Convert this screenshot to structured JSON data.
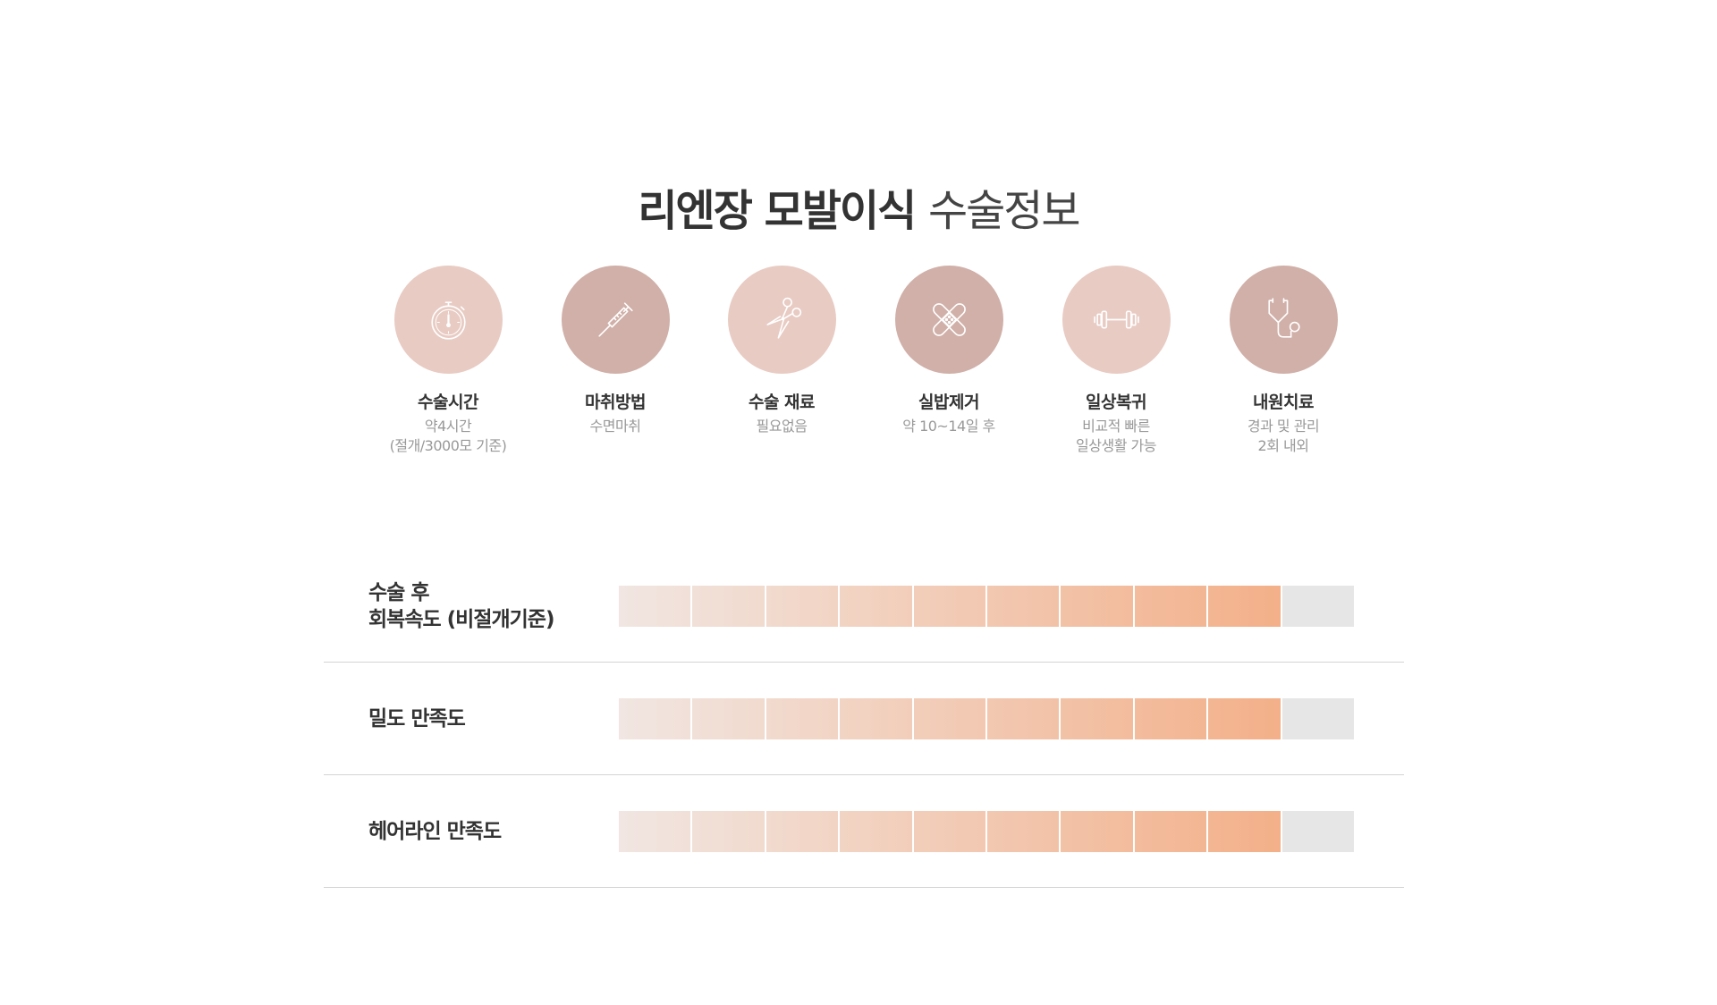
{
  "page": {
    "title_strong": "리엔장 모발이식",
    "title_light": "수술정보"
  },
  "info_items": [
    {
      "label": "수술시간",
      "desc": [
        "약4시간",
        "(절개/3000모 기준)"
      ],
      "icon": "stopwatch-icon",
      "tone": "light"
    },
    {
      "label": "마취방법",
      "desc": [
        "수면마취"
      ],
      "icon": "syringe-icon",
      "tone": "dark"
    },
    {
      "label": "수술 재료",
      "desc": [
        "필요없음"
      ],
      "icon": "scissors-icon",
      "tone": "light"
    },
    {
      "label": "실밥제거",
      "desc": [
        "약 10~14일 후"
      ],
      "icon": "bandage-icon",
      "tone": "dark"
    },
    {
      "label": "일상복귀",
      "desc": [
        "비교적 빠른",
        "일상생활 가능"
      ],
      "icon": "dumbbell-icon",
      "tone": "light"
    },
    {
      "label": "내원치료",
      "desc": [
        "경과 및 관리",
        "2회 내외"
      ],
      "icon": "stethoscope-icon",
      "tone": "dark"
    }
  ],
  "ratings": [
    {
      "label_lines": [
        "수술 후",
        "회복속도 (비절개기준)"
      ],
      "filled": 9,
      "total": 10
    },
    {
      "label_lines": [
        "밀도 만족도"
      ],
      "filled": 9,
      "total": 10
    },
    {
      "label_lines": [
        "헤어라인 만족도"
      ],
      "filled": 9,
      "total": 10
    }
  ],
  "colors": {
    "circle_light": "#e8cbc3",
    "circle_dark": "#d0b0a8",
    "bar_start": "#f1e6e2",
    "bar_end": "#f3b089",
    "bar_empty": "#e6e6e6"
  }
}
